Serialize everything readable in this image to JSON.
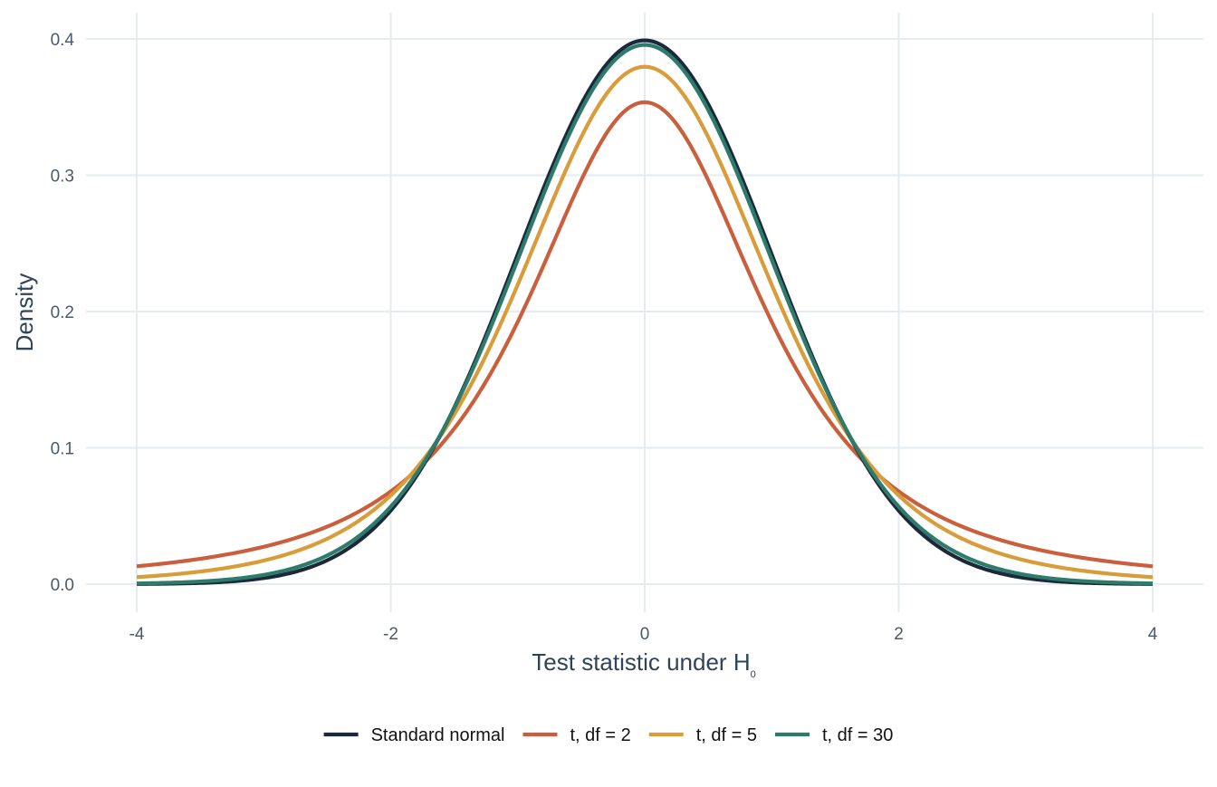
{
  "chart_data": {
    "type": "line",
    "title": "",
    "xlabel": "Test statistic under H",
    "xlabel_subscript": "0",
    "ylabel": "Density",
    "xlim": [
      -4,
      4
    ],
    "ylim": [
      0,
      0.4
    ],
    "x_ticks": [
      -4,
      -2,
      0,
      2,
      4
    ],
    "x_tick_labels": [
      "-4",
      "-2",
      "0",
      "2",
      "4"
    ],
    "y_ticks": [
      0,
      0.1,
      0.2,
      0.3,
      0.4
    ],
    "y_tick_labels": [
      "0.0",
      "0.1",
      "0.2",
      "0.3",
      "0.4"
    ],
    "grid": true,
    "legend_position": "bottom",
    "series": [
      {
        "name": "Standard normal",
        "color": "#1a2a3a",
        "dist": "normal"
      },
      {
        "name": "t, df = 2",
        "color": "#c95f3d",
        "dist": "t",
        "df": 2
      },
      {
        "name": "t, df = 5",
        "color": "#d99c3a",
        "dist": "t",
        "df": 5
      },
      {
        "name": "t, df = 30",
        "color": "#2e7a6b",
        "dist": "t",
        "df": 30
      }
    ]
  }
}
